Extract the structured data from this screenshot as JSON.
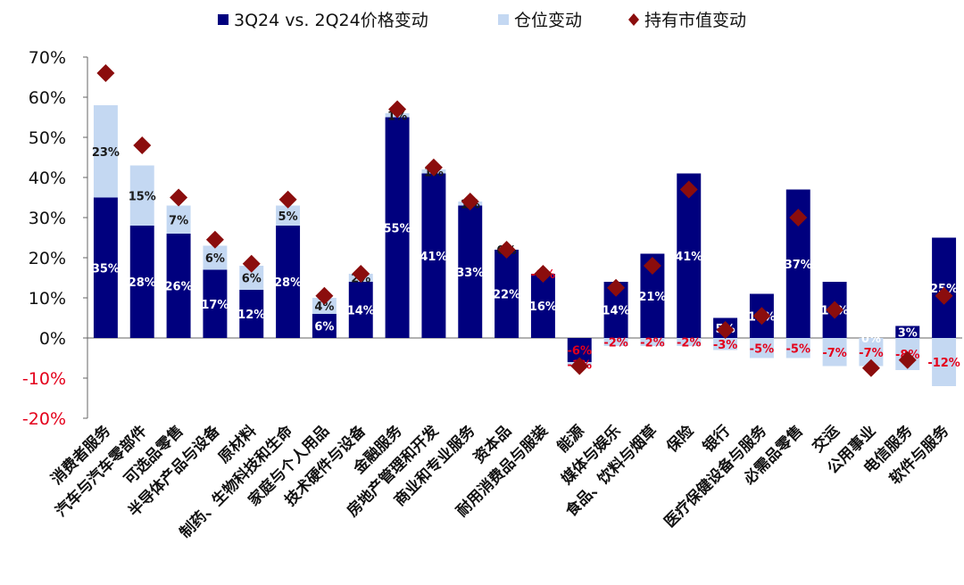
{
  "chart_data": {
    "type": "bar",
    "stacked": true,
    "categories": [
      "消费者服务",
      "汽车与汽车零部件",
      "可选品零售",
      "半导体产品与设备",
      "原材料",
      "制药、生物科技和生命",
      "家庭与个人用品",
      "技术硬件与设备",
      "金融服务",
      "房地产管理和开发",
      "商业和专业服务",
      "资本品",
      "耐用消费品与服装",
      "能源",
      "媒体与娱乐",
      "食品、饮料与烟草",
      "保险",
      "银行",
      "医疗保健设备与服务",
      "必需品零售",
      "交运",
      "公用事业",
      "电信服务",
      "软件与服务"
    ],
    "series": [
      {
        "name": "3Q24 vs. 2Q24价格变动",
        "kind": "bar",
        "color": "#00007e",
        "values": [
          35,
          28,
          26,
          17,
          12,
          28,
          6,
          14,
          55,
          41,
          33,
          22,
          16,
          -6,
          14,
          21,
          41,
          5,
          11,
          37,
          14,
          0,
          3,
          25
        ],
        "labels": [
          "35%",
          "28%",
          "26%",
          "17%",
          "12%",
          "28%",
          "6%",
          "14%",
          "55%",
          "41%",
          "33%",
          "22%",
          "16%",
          "-6%",
          "14%",
          "21%",
          "41%",
          "5%",
          "11%",
          "37%",
          "14%",
          "0%",
          "3%",
          "25%"
        ]
      },
      {
        "name": "仓位变动",
        "kind": "bar",
        "color": "#c4d8f2",
        "values": [
          23,
          15,
          7,
          6,
          6,
          5,
          4,
          2,
          1,
          1,
          1,
          0,
          0,
          -1,
          -2,
          -2,
          -2,
          -3,
          -5,
          -5,
          -7,
          -7,
          -8,
          -12
        ],
        "labels": [
          "23%",
          "15%",
          "7%",
          "6%",
          "6%",
          "5%",
          "4%",
          "2%",
          "1%",
          "1%",
          "1%",
          "0%",
          "-0%",
          "-1%",
          "-2%",
          "-2%",
          "-2%",
          "-3%",
          "-5%",
          "-5%",
          "-7%",
          "-7%",
          "-8%",
          "-12%"
        ]
      },
      {
        "name": "持有市值变动",
        "kind": "marker",
        "color": "#8b0d0d",
        "values": [
          66,
          48,
          35,
          24.5,
          18.5,
          34.5,
          10.5,
          16,
          57,
          42.5,
          34,
          22,
          16,
          -7,
          12.5,
          18,
          37,
          2,
          5.5,
          30,
          7,
          -7.5,
          -5.5,
          10.5
        ]
      }
    ],
    "y_ticks": [
      "70%",
      "60%",
      "50%",
      "40%",
      "30%",
      "20%",
      "10%",
      "0%",
      "-10%",
      "-20%"
    ],
    "ylim": [
      -20,
      70
    ],
    "grid": false,
    "legend_position": "top"
  }
}
